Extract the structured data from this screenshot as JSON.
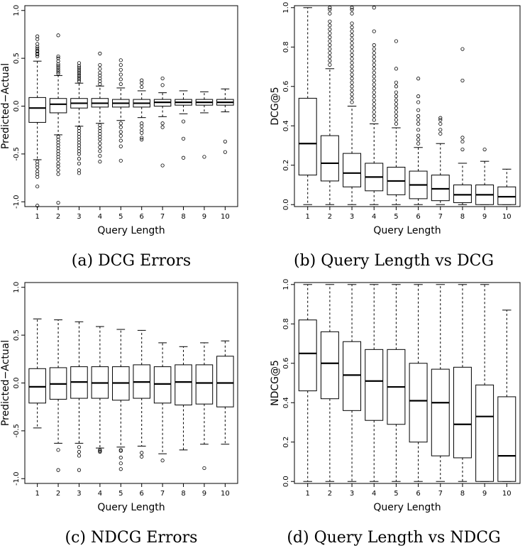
{
  "chart_data": [
    {
      "type": "box",
      "caption": "(a) DCG Errors",
      "xlabel": "Query Length",
      "ylabel": "Predicted−Actual",
      "categories": [
        "1",
        "2",
        "3",
        "4",
        "5",
        "6",
        "7",
        "8",
        "9",
        "10"
      ],
      "ylim": [
        -1.05,
        1.05
      ],
      "yticks": [
        "-1.0",
        "-0.5",
        "0.0",
        "0.5",
        "1.0"
      ],
      "ytick_values": [
        -1.0,
        -0.5,
        0.0,
        0.5,
        1.0
      ],
      "boxes": [
        {
          "whislo": -0.56,
          "q1": -0.17,
          "med": -0.02,
          "q3": 0.09,
          "whishi": 0.47,
          "fliers": [
            0.52,
            0.54,
            0.55,
            0.57,
            0.58,
            0.6,
            0.62,
            0.65,
            0.7,
            0.73,
            -0.58,
            -0.61,
            -0.64,
            -0.68,
            -0.71,
            -0.74,
            -0.84,
            -1.04
          ]
        },
        {
          "whislo": -0.3,
          "q1": -0.07,
          "med": 0.02,
          "q3": 0.08,
          "whishi": 0.32,
          "fliers": [
            0.34,
            0.36,
            0.38,
            0.4,
            0.42,
            0.44,
            0.47,
            0.5,
            0.52,
            0.74,
            -0.32,
            -0.35,
            -0.38,
            -0.41,
            -0.44,
            -0.47,
            -0.5,
            -0.53,
            -0.56,
            -0.6,
            -0.63,
            -0.67,
            -0.71,
            -1.01
          ]
        },
        {
          "whislo": -0.21,
          "q1": -0.02,
          "med": 0.03,
          "q3": 0.08,
          "whishi": 0.24,
          "fliers": [
            0.26,
            0.28,
            0.3,
            0.32,
            0.34,
            0.36,
            0.38,
            0.4,
            0.42,
            0.45,
            -0.23,
            -0.26,
            -0.29,
            -0.32,
            -0.35,
            -0.38,
            -0.41,
            -0.44,
            -0.47,
            -0.5,
            -0.55,
            -0.6,
            -0.67,
            -0.7
          ]
        },
        {
          "whislo": -0.18,
          "q1": -0.01,
          "med": 0.03,
          "q3": 0.08,
          "whishi": 0.21,
          "fliers": [
            0.23,
            0.26,
            0.29,
            0.32,
            0.35,
            0.39,
            0.43,
            0.55,
            -0.2,
            -0.23,
            -0.26,
            -0.29,
            -0.32,
            -0.35,
            -0.39,
            -0.43,
            -0.47,
            -0.52,
            -0.58
          ]
        },
        {
          "whislo": -0.15,
          "q1": -0.01,
          "med": 0.03,
          "q3": 0.07,
          "whishi": 0.19,
          "fliers": [
            0.23,
            0.28,
            0.33,
            0.38,
            0.43,
            0.48,
            -0.18,
            -0.22,
            -0.27,
            -0.31,
            -0.36,
            -0.42,
            -0.57
          ]
        },
        {
          "whislo": -0.12,
          "q1": -0.01,
          "med": 0.03,
          "q3": 0.07,
          "whishi": 0.16,
          "fliers": [
            0.2,
            0.24,
            0.27,
            -0.18,
            -0.21,
            -0.25,
            -0.28,
            -0.33,
            -0.35
          ]
        },
        {
          "whislo": -0.11,
          "q1": 0.0,
          "med": 0.04,
          "q3": 0.07,
          "whishi": 0.14,
          "fliers": [
            0.22,
            0.29,
            -0.18,
            -0.22,
            -0.62
          ]
        },
        {
          "whislo": -0.08,
          "q1": 0.01,
          "med": 0.04,
          "q3": 0.07,
          "whishi": 0.16,
          "fliers": [
            -0.16,
            -0.34,
            -0.54
          ]
        },
        {
          "whislo": -0.07,
          "q1": 0.01,
          "med": 0.04,
          "q3": 0.07,
          "whishi": 0.15,
          "fliers": [
            -0.53
          ]
        },
        {
          "whislo": -0.06,
          "q1": 0.01,
          "med": 0.04,
          "q3": 0.07,
          "whishi": 0.18,
          "fliers": [
            -0.37,
            -0.48
          ]
        }
      ]
    },
    {
      "type": "box",
      "caption": "(b) Query Length vs DCG",
      "xlabel": "Query Length",
      "ylabel": "DCG@5",
      "categories": [
        "1",
        "2",
        "3",
        "4",
        "5",
        "6",
        "7",
        "8",
        "9",
        "10"
      ],
      "ylim": [
        -0.01,
        1.01
      ],
      "yticks": [
        "0.0",
        "0.2",
        "0.4",
        "0.6",
        "0.8",
        "1.0"
      ],
      "ytick_values": [
        0.0,
        0.2,
        0.4,
        0.6,
        0.8,
        1.0
      ],
      "boxes": [
        {
          "whislo": 0.0,
          "q1": 0.15,
          "med": 0.31,
          "q3": 0.54,
          "whishi": 1.0,
          "fliers": []
        },
        {
          "whislo": 0.0,
          "q1": 0.12,
          "med": 0.21,
          "q3": 0.35,
          "whishi": 0.69,
          "fliers": [
            0.71,
            0.73,
            0.75,
            0.77,
            0.79,
            0.81,
            0.83,
            0.85,
            0.87,
            0.89,
            0.91,
            0.93,
            0.97,
            0.99,
            1.0
          ]
        },
        {
          "whislo": 0.0,
          "q1": 0.09,
          "med": 0.16,
          "q3": 0.26,
          "whishi": 0.5,
          "fliers": [
            0.52,
            0.54,
            0.56,
            0.58,
            0.6,
            0.62,
            0.64,
            0.66,
            0.68,
            0.7,
            0.72,
            0.74,
            0.76,
            0.78,
            0.8,
            0.82,
            0.84,
            0.86,
            0.88,
            0.9,
            0.92,
            0.97,
            0.99,
            1.0
          ]
        },
        {
          "whislo": 0.0,
          "q1": 0.07,
          "med": 0.14,
          "q3": 0.21,
          "whishi": 0.41,
          "fliers": [
            0.43,
            0.45,
            0.47,
            0.49,
            0.51,
            0.53,
            0.55,
            0.57,
            0.59,
            0.61,
            0.63,
            0.65,
            0.67,
            0.69,
            0.71,
            0.73,
            0.75,
            0.77,
            0.79,
            0.81,
            0.88,
            1.0
          ]
        },
        {
          "whislo": 0.0,
          "q1": 0.05,
          "med": 0.12,
          "q3": 0.19,
          "whishi": 0.39,
          "fliers": [
            0.41,
            0.43,
            0.45,
            0.47,
            0.49,
            0.51,
            0.53,
            0.55,
            0.57,
            0.6,
            0.62,
            0.69,
            0.83
          ]
        },
        {
          "whislo": 0.0,
          "q1": 0.03,
          "med": 0.1,
          "q3": 0.17,
          "whishi": 0.29,
          "fliers": [
            0.31,
            0.33,
            0.35,
            0.38,
            0.41,
            0.43,
            0.45,
            0.48,
            0.52,
            0.55,
            0.64
          ]
        },
        {
          "whislo": 0.0,
          "q1": 0.02,
          "med": 0.08,
          "q3": 0.15,
          "whishi": 0.31,
          "fliers": [
            0.36,
            0.38,
            0.41,
            0.43,
            0.44
          ]
        },
        {
          "whislo": 0.0,
          "q1": 0.01,
          "med": 0.05,
          "q3": 0.1,
          "whishi": 0.21,
          "fliers": [
            0.28,
            0.32,
            0.34,
            0.63,
            0.79
          ]
        },
        {
          "whislo": 0.0,
          "q1": 0.0,
          "med": 0.05,
          "q3": 0.1,
          "whishi": 0.22,
          "fliers": [
            0.28
          ]
        },
        {
          "whislo": 0.0,
          "q1": 0.0,
          "med": 0.04,
          "q3": 0.09,
          "whishi": 0.18,
          "fliers": []
        }
      ]
    },
    {
      "type": "box",
      "caption": "(c) NDCG Errors",
      "xlabel": "Query Length",
      "ylabel": "Predicted−Actual",
      "categories": [
        "1",
        "2",
        "3",
        "4",
        "5",
        "6",
        "7",
        "8",
        "9",
        "10"
      ],
      "ylim": [
        -1.05,
        1.05
      ],
      "yticks": [
        "-1.0",
        "-0.5",
        "0.0",
        "0.5",
        "1.0"
      ],
      "ytick_values": [
        -1.0,
        -0.5,
        0.0,
        0.5,
        1.0
      ],
      "boxes": [
        {
          "whislo": -0.47,
          "q1": -0.21,
          "med": -0.04,
          "q3": 0.15,
          "whishi": 0.67,
          "fliers": []
        },
        {
          "whislo": -0.63,
          "q1": -0.17,
          "med": -0.01,
          "q3": 0.16,
          "whishi": 0.66,
          "fliers": [
            -0.7,
            -0.91
          ]
        },
        {
          "whislo": -0.63,
          "q1": -0.16,
          "med": 0.01,
          "q3": 0.17,
          "whishi": 0.64,
          "fliers": [
            -0.67,
            -0.72,
            -0.76,
            -0.91
          ]
        },
        {
          "whislo": -0.68,
          "q1": -0.16,
          "med": 0.0,
          "q3": 0.17,
          "whishi": 0.59,
          "fliers": [
            -0.7,
            -0.71,
            -0.72
          ]
        },
        {
          "whislo": -0.67,
          "q1": -0.18,
          "med": 0.0,
          "q3": 0.17,
          "whishi": 0.56,
          "fliers": [
            -0.7,
            -0.71,
            -0.78,
            -0.84,
            -0.9
          ]
        },
        {
          "whislo": -0.66,
          "q1": -0.16,
          "med": 0.01,
          "q3": 0.19,
          "whishi": 0.55,
          "fliers": [
            -0.73,
            -0.77
          ]
        },
        {
          "whislo": -0.74,
          "q1": -0.21,
          "med": -0.01,
          "q3": 0.17,
          "whishi": 0.42,
          "fliers": [
            -0.81
          ]
        },
        {
          "whislo": -0.7,
          "q1": -0.23,
          "med": 0.01,
          "q3": 0.19,
          "whishi": 0.38,
          "fliers": []
        },
        {
          "whislo": -0.64,
          "q1": -0.22,
          "med": 0.0,
          "q3": 0.19,
          "whishi": 0.42,
          "fliers": [
            -0.89
          ]
        },
        {
          "whislo": -0.64,
          "q1": -0.25,
          "med": 0.0,
          "q3": 0.28,
          "whishi": 0.44,
          "fliers": []
        }
      ]
    },
    {
      "type": "box",
      "caption": "(d) Query Length vs NDCG",
      "xlabel": "Query Length",
      "ylabel": "NDCG@5",
      "categories": [
        "1",
        "2",
        "3",
        "4",
        "5",
        "6",
        "7",
        "8",
        "9",
        "10"
      ],
      "ylim": [
        -0.01,
        1.01
      ],
      "yticks": [
        "0.0",
        "0.2",
        "0.4",
        "0.6",
        "0.8",
        "1.0"
      ],
      "ytick_values": [
        0.0,
        0.2,
        0.4,
        0.6,
        0.8,
        1.0
      ],
      "boxes": [
        {
          "whislo": 0.0,
          "q1": 0.46,
          "med": 0.65,
          "q3": 0.82,
          "whishi": 1.0,
          "fliers": []
        },
        {
          "whislo": 0.0,
          "q1": 0.42,
          "med": 0.6,
          "q3": 0.76,
          "whishi": 1.0,
          "fliers": []
        },
        {
          "whislo": 0.0,
          "q1": 0.36,
          "med": 0.54,
          "q3": 0.71,
          "whishi": 1.0,
          "fliers": []
        },
        {
          "whislo": 0.0,
          "q1": 0.31,
          "med": 0.51,
          "q3": 0.67,
          "whishi": 1.0,
          "fliers": []
        },
        {
          "whislo": 0.0,
          "q1": 0.29,
          "med": 0.48,
          "q3": 0.67,
          "whishi": 1.0,
          "fliers": []
        },
        {
          "whislo": 0.0,
          "q1": 0.2,
          "med": 0.41,
          "q3": 0.6,
          "whishi": 1.0,
          "fliers": []
        },
        {
          "whislo": 0.0,
          "q1": 0.13,
          "med": 0.4,
          "q3": 0.57,
          "whishi": 1.0,
          "fliers": []
        },
        {
          "whislo": 0.0,
          "q1": 0.12,
          "med": 0.29,
          "q3": 0.58,
          "whishi": 1.0,
          "fliers": []
        },
        {
          "whislo": 0.0,
          "q1": 0.0,
          "med": 0.33,
          "q3": 0.49,
          "whishi": 1.0,
          "fliers": []
        },
        {
          "whislo": 0.0,
          "q1": 0.0,
          "med": 0.13,
          "q3": 0.43,
          "whishi": 0.87,
          "fliers": []
        }
      ]
    }
  ]
}
